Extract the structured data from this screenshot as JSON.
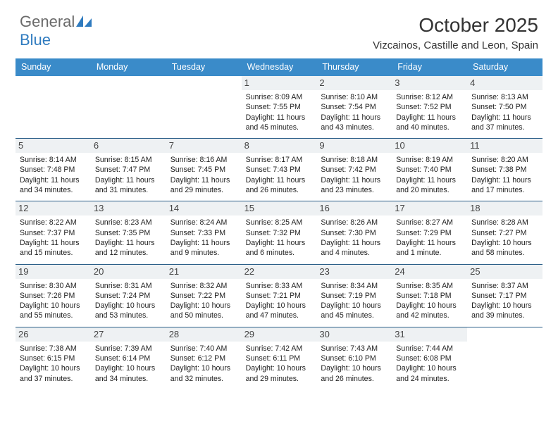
{
  "logo": {
    "text1": "General",
    "text2": "Blue"
  },
  "title": "October 2025",
  "location": "Vizcainos, Castille and Leon, Spain",
  "colors": {
    "header_bg": "#3a8bc9",
    "header_fg": "#ffffff",
    "daynum_bg": "#eef1f3",
    "week_border": "#2a5e88"
  },
  "day_names": [
    "Sunday",
    "Monday",
    "Tuesday",
    "Wednesday",
    "Thursday",
    "Friday",
    "Saturday"
  ],
  "weeks": [
    [
      {
        "n": "",
        "sr": "",
        "ss": "",
        "dl": ""
      },
      {
        "n": "",
        "sr": "",
        "ss": "",
        "dl": ""
      },
      {
        "n": "",
        "sr": "",
        "ss": "",
        "dl": ""
      },
      {
        "n": "1",
        "sr": "Sunrise: 8:09 AM",
        "ss": "Sunset: 7:55 PM",
        "dl": "Daylight: 11 hours and 45 minutes."
      },
      {
        "n": "2",
        "sr": "Sunrise: 8:10 AM",
        "ss": "Sunset: 7:54 PM",
        "dl": "Daylight: 11 hours and 43 minutes."
      },
      {
        "n": "3",
        "sr": "Sunrise: 8:12 AM",
        "ss": "Sunset: 7:52 PM",
        "dl": "Daylight: 11 hours and 40 minutes."
      },
      {
        "n": "4",
        "sr": "Sunrise: 8:13 AM",
        "ss": "Sunset: 7:50 PM",
        "dl": "Daylight: 11 hours and 37 minutes."
      }
    ],
    [
      {
        "n": "5",
        "sr": "Sunrise: 8:14 AM",
        "ss": "Sunset: 7:48 PM",
        "dl": "Daylight: 11 hours and 34 minutes."
      },
      {
        "n": "6",
        "sr": "Sunrise: 8:15 AM",
        "ss": "Sunset: 7:47 PM",
        "dl": "Daylight: 11 hours and 31 minutes."
      },
      {
        "n": "7",
        "sr": "Sunrise: 8:16 AM",
        "ss": "Sunset: 7:45 PM",
        "dl": "Daylight: 11 hours and 29 minutes."
      },
      {
        "n": "8",
        "sr": "Sunrise: 8:17 AM",
        "ss": "Sunset: 7:43 PM",
        "dl": "Daylight: 11 hours and 26 minutes."
      },
      {
        "n": "9",
        "sr": "Sunrise: 8:18 AM",
        "ss": "Sunset: 7:42 PM",
        "dl": "Daylight: 11 hours and 23 minutes."
      },
      {
        "n": "10",
        "sr": "Sunrise: 8:19 AM",
        "ss": "Sunset: 7:40 PM",
        "dl": "Daylight: 11 hours and 20 minutes."
      },
      {
        "n": "11",
        "sr": "Sunrise: 8:20 AM",
        "ss": "Sunset: 7:38 PM",
        "dl": "Daylight: 11 hours and 17 minutes."
      }
    ],
    [
      {
        "n": "12",
        "sr": "Sunrise: 8:22 AM",
        "ss": "Sunset: 7:37 PM",
        "dl": "Daylight: 11 hours and 15 minutes."
      },
      {
        "n": "13",
        "sr": "Sunrise: 8:23 AM",
        "ss": "Sunset: 7:35 PM",
        "dl": "Daylight: 11 hours and 12 minutes."
      },
      {
        "n": "14",
        "sr": "Sunrise: 8:24 AM",
        "ss": "Sunset: 7:33 PM",
        "dl": "Daylight: 11 hours and 9 minutes."
      },
      {
        "n": "15",
        "sr": "Sunrise: 8:25 AM",
        "ss": "Sunset: 7:32 PM",
        "dl": "Daylight: 11 hours and 6 minutes."
      },
      {
        "n": "16",
        "sr": "Sunrise: 8:26 AM",
        "ss": "Sunset: 7:30 PM",
        "dl": "Daylight: 11 hours and 4 minutes."
      },
      {
        "n": "17",
        "sr": "Sunrise: 8:27 AM",
        "ss": "Sunset: 7:29 PM",
        "dl": "Daylight: 11 hours and 1 minute."
      },
      {
        "n": "18",
        "sr": "Sunrise: 8:28 AM",
        "ss": "Sunset: 7:27 PM",
        "dl": "Daylight: 10 hours and 58 minutes."
      }
    ],
    [
      {
        "n": "19",
        "sr": "Sunrise: 8:30 AM",
        "ss": "Sunset: 7:26 PM",
        "dl": "Daylight: 10 hours and 55 minutes."
      },
      {
        "n": "20",
        "sr": "Sunrise: 8:31 AM",
        "ss": "Sunset: 7:24 PM",
        "dl": "Daylight: 10 hours and 53 minutes."
      },
      {
        "n": "21",
        "sr": "Sunrise: 8:32 AM",
        "ss": "Sunset: 7:22 PM",
        "dl": "Daylight: 10 hours and 50 minutes."
      },
      {
        "n": "22",
        "sr": "Sunrise: 8:33 AM",
        "ss": "Sunset: 7:21 PM",
        "dl": "Daylight: 10 hours and 47 minutes."
      },
      {
        "n": "23",
        "sr": "Sunrise: 8:34 AM",
        "ss": "Sunset: 7:19 PM",
        "dl": "Daylight: 10 hours and 45 minutes."
      },
      {
        "n": "24",
        "sr": "Sunrise: 8:35 AM",
        "ss": "Sunset: 7:18 PM",
        "dl": "Daylight: 10 hours and 42 minutes."
      },
      {
        "n": "25",
        "sr": "Sunrise: 8:37 AM",
        "ss": "Sunset: 7:17 PM",
        "dl": "Daylight: 10 hours and 39 minutes."
      }
    ],
    [
      {
        "n": "26",
        "sr": "Sunrise: 7:38 AM",
        "ss": "Sunset: 6:15 PM",
        "dl": "Daylight: 10 hours and 37 minutes."
      },
      {
        "n": "27",
        "sr": "Sunrise: 7:39 AM",
        "ss": "Sunset: 6:14 PM",
        "dl": "Daylight: 10 hours and 34 minutes."
      },
      {
        "n": "28",
        "sr": "Sunrise: 7:40 AM",
        "ss": "Sunset: 6:12 PM",
        "dl": "Daylight: 10 hours and 32 minutes."
      },
      {
        "n": "29",
        "sr": "Sunrise: 7:42 AM",
        "ss": "Sunset: 6:11 PM",
        "dl": "Daylight: 10 hours and 29 minutes."
      },
      {
        "n": "30",
        "sr": "Sunrise: 7:43 AM",
        "ss": "Sunset: 6:10 PM",
        "dl": "Daylight: 10 hours and 26 minutes."
      },
      {
        "n": "31",
        "sr": "Sunrise: 7:44 AM",
        "ss": "Sunset: 6:08 PM",
        "dl": "Daylight: 10 hours and 24 minutes."
      },
      {
        "n": "",
        "sr": "",
        "ss": "",
        "dl": ""
      }
    ]
  ]
}
